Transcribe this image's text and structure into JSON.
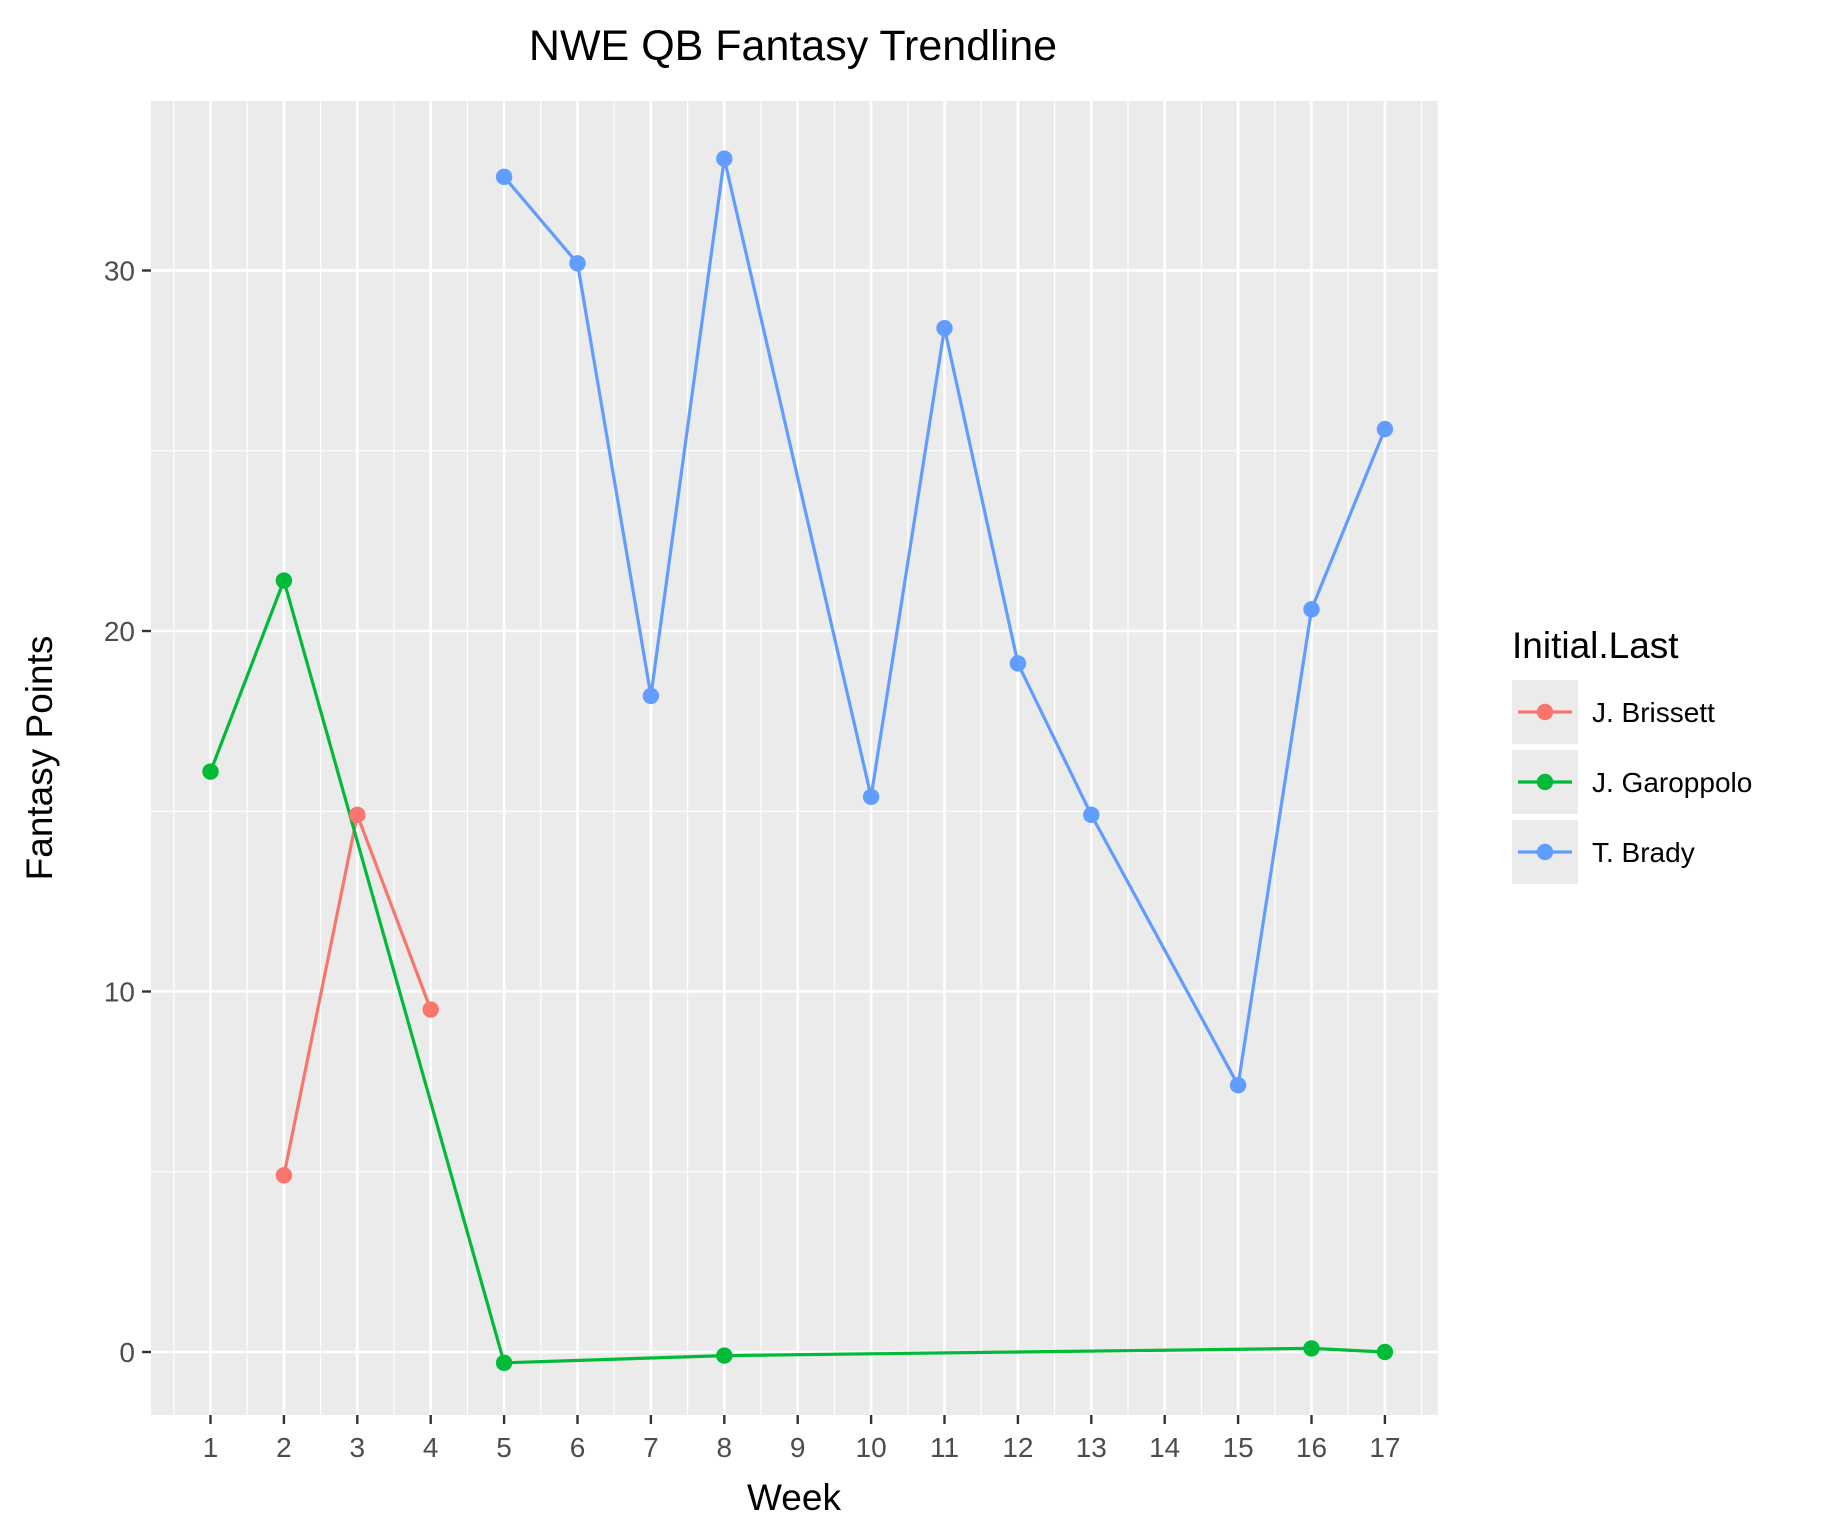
{
  "chart_data": {
    "type": "line",
    "title": "NWE QB Fantasy Trendline",
    "xlabel": "Week",
    "ylabel": "Fantasy Points",
    "x_categories": [
      "1",
      "2",
      "3",
      "4",
      "5",
      "6",
      "7",
      "8",
      "9",
      "10",
      "11",
      "12",
      "13",
      "14",
      "15",
      "16",
      "17"
    ],
    "ylim": [
      -2,
      35.5
    ],
    "y_ticks": [
      0,
      10,
      20,
      30
    ],
    "grid": true,
    "legend": {
      "title": "Initial.Last",
      "position": "right"
    },
    "series": [
      {
        "name": "J. Brissett",
        "color": "#F8766D",
        "points": [
          {
            "x": "2",
            "y": 4.9
          },
          {
            "x": "3",
            "y": 14.9
          },
          {
            "x": "4",
            "y": 9.5
          }
        ]
      },
      {
        "name": "J. Garoppolo",
        "color": "#00BA38",
        "points": [
          {
            "x": "1",
            "y": 16.1
          },
          {
            "x": "2",
            "y": 21.4
          },
          {
            "x": "5",
            "y": -0.3
          },
          {
            "x": "8",
            "y": -0.1
          },
          {
            "x": "16",
            "y": 0.1
          },
          {
            "x": "17",
            "y": 0.0
          }
        ]
      },
      {
        "name": "T. Brady",
        "color": "#619CFF",
        "points": [
          {
            "x": "5",
            "y": 32.6
          },
          {
            "x": "6",
            "y": 30.2
          },
          {
            "x": "7",
            "y": 18.2
          },
          {
            "x": "8",
            "y": 33.1
          },
          {
            "x": "10",
            "y": 15.4
          },
          {
            "x": "11",
            "y": 28.4
          },
          {
            "x": "12",
            "y": 19.1
          },
          {
            "x": "13",
            "y": 14.9
          },
          {
            "x": "15",
            "y": 7.4
          },
          {
            "x": "16",
            "y": 20.6
          },
          {
            "x": "17",
            "y": 25.6
          }
        ]
      }
    ]
  }
}
